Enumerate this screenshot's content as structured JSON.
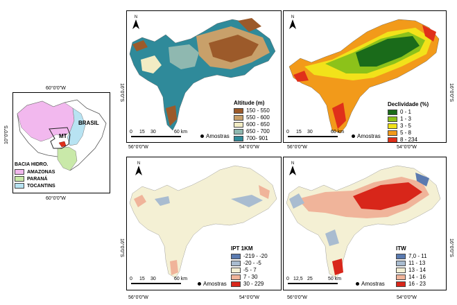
{
  "inset": {
    "top_lon": "60°0'0\"W",
    "bottom_lon": "60°0'0\"W",
    "lat": "10°0'0\"S",
    "country_label": "BRASIL",
    "state_label": "MT",
    "legend_title": "BACIA HIDRO.",
    "legend_items": [
      {
        "label": "AMAZONAS",
        "color": "#f2b8ee"
      },
      {
        "label": "PARANÁ",
        "color": "#c9e9a9"
      },
      {
        "label": "TOCANTINS",
        "color": "#b8e3f2"
      }
    ]
  },
  "common": {
    "lon_left": "56°0'0\"W",
    "lon_right": "54°0'0\"W",
    "lat": "16°0'0\"S",
    "north": "N",
    "samples_label": "Amostras"
  },
  "altitude": {
    "title": "Altitude (m)",
    "items": [
      {
        "label": "150 - 550",
        "color": "#9c5a2a"
      },
      {
        "label": "550 - 600",
        "color": "#c8a06a"
      },
      {
        "label": "600 - 650",
        "color": "#f2ecc4"
      },
      {
        "label": "650 - 700",
        "color": "#8fb8b0"
      },
      {
        "label": "700- 901",
        "color": "#2f8a9a"
      }
    ],
    "scale": [
      "0",
      "15",
      "30",
      "60 km"
    ]
  },
  "declividade": {
    "title": "Declividade (%)",
    "items": [
      {
        "label": "0 - 1",
        "color": "#1a6b1a"
      },
      {
        "label": "1 - 3",
        "color": "#8cc21a"
      },
      {
        "label": "3 - 5",
        "color": "#f2e21a"
      },
      {
        "label": "5 - 8",
        "color": "#f29a1a"
      },
      {
        "label": "8 - 234",
        "color": "#e0301a"
      }
    ],
    "scale": [
      "0",
      "15",
      "30",
      "60 km"
    ]
  },
  "ipt": {
    "title": "IPT 1KM",
    "items": [
      {
        "label": "-219 - -20",
        "color": "#5a7ab0"
      },
      {
        "label": "-20 - -5",
        "color": "#a9bcd0"
      },
      {
        "label": "-5 - 7",
        "color": "#f4f0d4"
      },
      {
        "label": "7 - 30",
        "color": "#f0b49a"
      },
      {
        "label": "30 - 229",
        "color": "#d8261a"
      }
    ],
    "scale": [
      "0",
      "15",
      "30",
      "60 km"
    ]
  },
  "itw": {
    "title": "ITW",
    "items": [
      {
        "label": "7,0 - 11",
        "color": "#5a7ab0"
      },
      {
        "label": "11 - 13",
        "color": "#a9bcd0"
      },
      {
        "label": "13 - 14",
        "color": "#f4f0d4"
      },
      {
        "label": "14 - 16",
        "color": "#f0b49a"
      },
      {
        "label": "16 - 23",
        "color": "#d8261a"
      }
    ],
    "scale": [
      "0",
      "12,5",
      "25",
      "50 km"
    ]
  }
}
